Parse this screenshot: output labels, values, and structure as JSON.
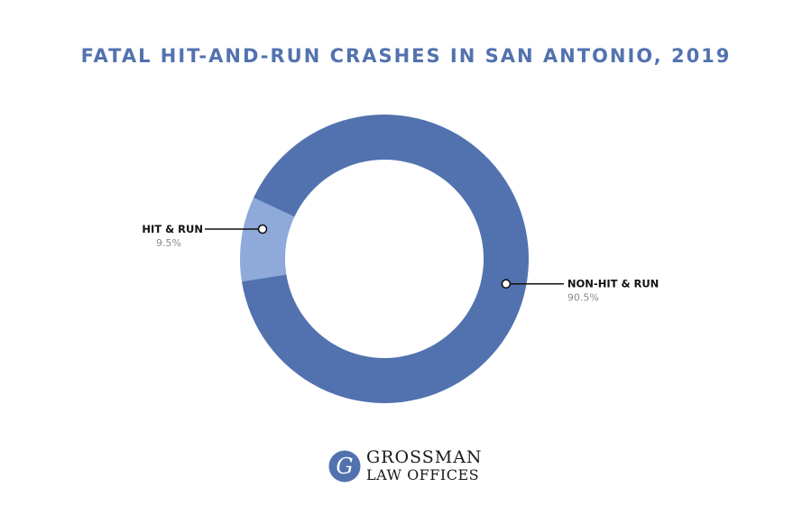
{
  "chart_data": {
    "type": "pie",
    "title": "FATAL HIT-AND-RUN CRASHES IN SAN ANTONIO, 2019",
    "donut": true,
    "slices": [
      {
        "label": "HIT & RUN",
        "value_label": "9.5%",
        "value": 9.5,
        "color": "#8ea9da"
      },
      {
        "label": "NON-HIT & RUN",
        "value_label": "90.5%",
        "value": 90.5,
        "color": "#5272af"
      }
    ]
  },
  "logo": {
    "mark_letter": "G",
    "line1": "GROSSMAN",
    "line2": "LAW OFFICES",
    "mark_color": "#5272af"
  }
}
